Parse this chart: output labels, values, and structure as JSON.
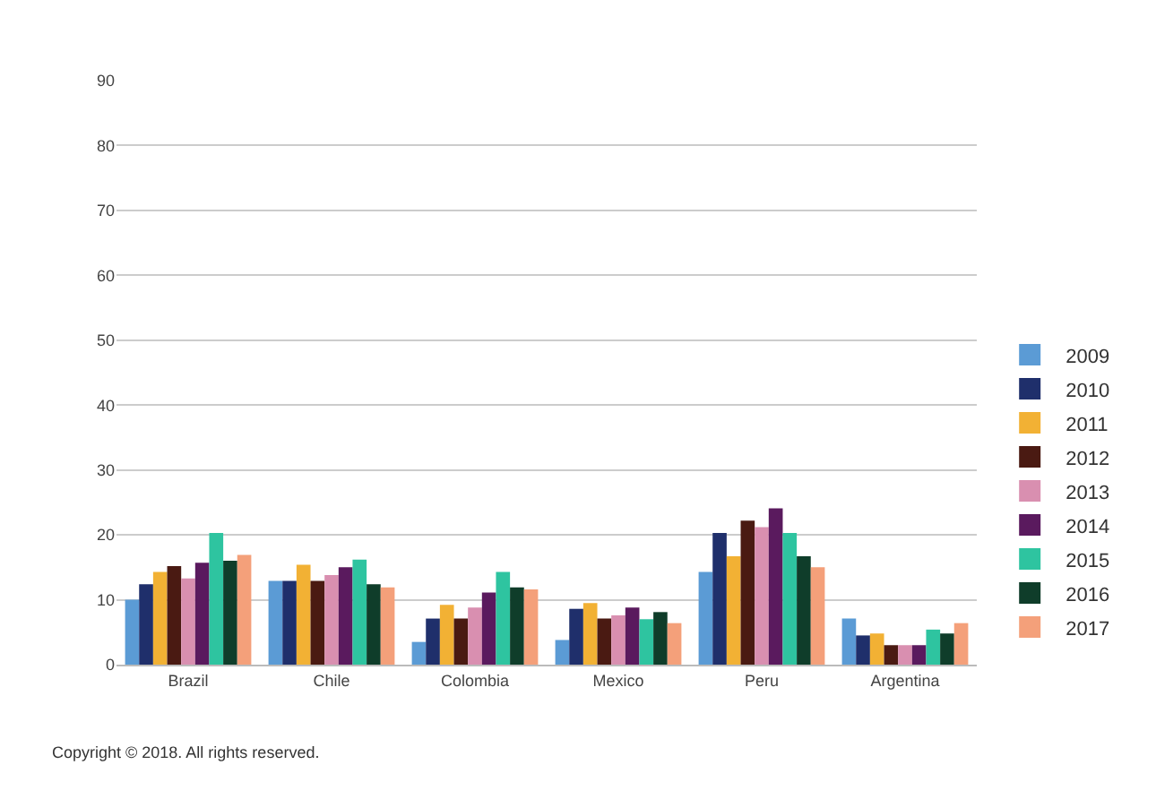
{
  "chart_data": {
    "type": "bar",
    "categories": [
      "Brazil",
      "Chile",
      "Colombia",
      "Mexico",
      "Peru",
      "Argentina"
    ],
    "series": [
      {
        "name": "2009",
        "color": "#5b9bd5",
        "values": [
          10,
          12.9,
          3.5,
          3.8,
          14.3,
          7.1
        ]
      },
      {
        "name": "2010",
        "color": "#1f2f6b",
        "values": [
          12.4,
          12.9,
          7.1,
          8.6,
          20.3,
          4.5
        ]
      },
      {
        "name": "2011",
        "color": "#f2b134",
        "values": [
          14.3,
          15.4,
          9.2,
          9.5,
          16.7,
          4.8
        ]
      },
      {
        "name": "2012",
        "color": "#4a1a12",
        "values": [
          15.2,
          12.9,
          7.1,
          7.1,
          22.2,
          3
        ]
      },
      {
        "name": "2013",
        "color": "#d98fb0",
        "values": [
          13.3,
          13.8,
          8.8,
          7.6,
          21.2,
          3
        ]
      },
      {
        "name": "2014",
        "color": "#5a1a5e",
        "values": [
          15.7,
          15,
          11.1,
          8.8,
          24.1,
          3
        ]
      },
      {
        "name": "2015",
        "color": "#2ec4a0",
        "values": [
          20.3,
          16.2,
          14.3,
          7,
          20.3,
          5.4
        ]
      },
      {
        "name": "2016",
        "color": "#0f3d2a",
        "values": [
          16,
          12.4,
          11.9,
          8.1,
          16.7,
          4.8
        ]
      },
      {
        "name": "2017",
        "color": "#f4a07a",
        "values": [
          16.9,
          11.9,
          11.6,
          6.4,
          15,
          6.4
        ]
      }
    ],
    "ylim": [
      0,
      90
    ],
    "yticks": [
      0,
      10,
      20,
      30,
      40,
      50,
      60,
      70,
      80,
      90
    ],
    "grid": "y",
    "legend": "right",
    "annotations": [
      "Copyright © 2018. All rights reserved."
    ]
  }
}
